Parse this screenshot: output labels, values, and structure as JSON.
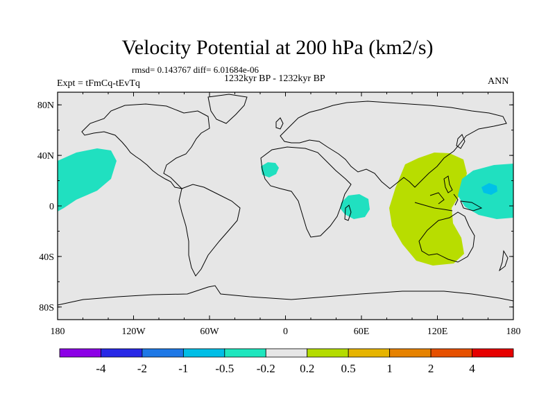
{
  "title": "Velocity Potential at 200 hPa (km2/s)",
  "stats": "rmsd= 0.143767 diff= 6.01684e-06",
  "period": "1232kyr BP - 1232kyr BP",
  "experiment": "Expt = tFmCq-tEvTq",
  "season": "ANN",
  "map": {
    "lat_labels": [
      "80N",
      "40N",
      "0",
      "40S",
      "80S"
    ],
    "lon_labels": [
      "180",
      "120W",
      "60W",
      "0",
      "60E",
      "120E",
      "180"
    ],
    "lat_values": [
      80,
      40,
      0,
      -40,
      -80
    ],
    "lon_values": [
      -180,
      -120,
      -60,
      0,
      60,
      120,
      180
    ],
    "background_color": "#e6e6e6",
    "contours": [
      {
        "name": "central-pacific-negative-patch",
        "level": "-0.5 to -0.2",
        "color": "#20e0c0"
      },
      {
        "name": "west-africa-negative-patch",
        "level": "-0.5 to -0.2",
        "color": "#20e0c0"
      },
      {
        "name": "western-indian-ocean-negative-patch",
        "level": "-0.5 to -0.2",
        "color": "#20e0c0"
      },
      {
        "name": "maritime-continent-positive-patch",
        "level": "0.2 to 0.5",
        "color": "#b8dd00"
      },
      {
        "name": "western-pacific-negative-patch",
        "level": "-0.5 to -0.2",
        "color": "#20e0c0"
      },
      {
        "name": "western-pacific-core",
        "level": "-1 to -0.5",
        "color": "#00c0e8"
      }
    ]
  },
  "colorbar": {
    "colors": [
      "#8c00e6",
      "#2828e6",
      "#1e78e6",
      "#00bee6",
      "#1ee6be",
      "#e6e6e6",
      "#b4dc00",
      "#e6b400",
      "#e68200",
      "#e65000",
      "#e60000"
    ],
    "labels": [
      "-4",
      "-2",
      "-1",
      "-0.5",
      "-0.2",
      "0.2",
      "0.5",
      "1",
      "2",
      "4"
    ]
  }
}
